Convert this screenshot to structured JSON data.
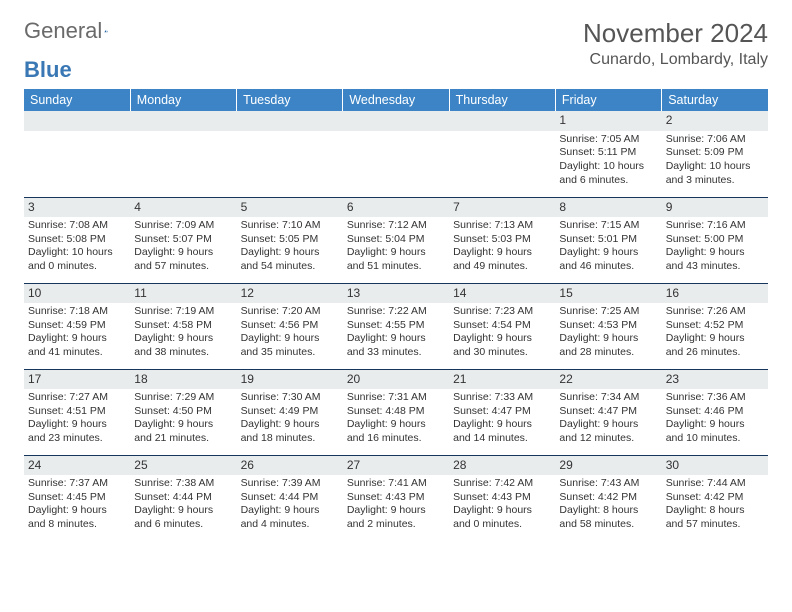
{
  "logo": {
    "text_general": "General",
    "text_blue": "Blue"
  },
  "title": "November 2024",
  "location": "Cunardo, Lombardy, Italy",
  "colors": {
    "header_bg": "#3c84c6",
    "header_text": "#ffffff",
    "daynum_bg": "#e9eced",
    "row_border": "#16365c",
    "logo_blue": "#3a78b5"
  },
  "weekdays": [
    "Sunday",
    "Monday",
    "Tuesday",
    "Wednesday",
    "Thursday",
    "Friday",
    "Saturday"
  ],
  "weeks": [
    [
      {
        "n": "",
        "sr": "",
        "ss": "",
        "dl": ""
      },
      {
        "n": "",
        "sr": "",
        "ss": "",
        "dl": ""
      },
      {
        "n": "",
        "sr": "",
        "ss": "",
        "dl": ""
      },
      {
        "n": "",
        "sr": "",
        "ss": "",
        "dl": ""
      },
      {
        "n": "",
        "sr": "",
        "ss": "",
        "dl": ""
      },
      {
        "n": "1",
        "sr": "Sunrise: 7:05 AM",
        "ss": "Sunset: 5:11 PM",
        "dl": "Daylight: 10 hours and 6 minutes."
      },
      {
        "n": "2",
        "sr": "Sunrise: 7:06 AM",
        "ss": "Sunset: 5:09 PM",
        "dl": "Daylight: 10 hours and 3 minutes."
      }
    ],
    [
      {
        "n": "3",
        "sr": "Sunrise: 7:08 AM",
        "ss": "Sunset: 5:08 PM",
        "dl": "Daylight: 10 hours and 0 minutes."
      },
      {
        "n": "4",
        "sr": "Sunrise: 7:09 AM",
        "ss": "Sunset: 5:07 PM",
        "dl": "Daylight: 9 hours and 57 minutes."
      },
      {
        "n": "5",
        "sr": "Sunrise: 7:10 AM",
        "ss": "Sunset: 5:05 PM",
        "dl": "Daylight: 9 hours and 54 minutes."
      },
      {
        "n": "6",
        "sr": "Sunrise: 7:12 AM",
        "ss": "Sunset: 5:04 PM",
        "dl": "Daylight: 9 hours and 51 minutes."
      },
      {
        "n": "7",
        "sr": "Sunrise: 7:13 AM",
        "ss": "Sunset: 5:03 PM",
        "dl": "Daylight: 9 hours and 49 minutes."
      },
      {
        "n": "8",
        "sr": "Sunrise: 7:15 AM",
        "ss": "Sunset: 5:01 PM",
        "dl": "Daylight: 9 hours and 46 minutes."
      },
      {
        "n": "9",
        "sr": "Sunrise: 7:16 AM",
        "ss": "Sunset: 5:00 PM",
        "dl": "Daylight: 9 hours and 43 minutes."
      }
    ],
    [
      {
        "n": "10",
        "sr": "Sunrise: 7:18 AM",
        "ss": "Sunset: 4:59 PM",
        "dl": "Daylight: 9 hours and 41 minutes."
      },
      {
        "n": "11",
        "sr": "Sunrise: 7:19 AM",
        "ss": "Sunset: 4:58 PM",
        "dl": "Daylight: 9 hours and 38 minutes."
      },
      {
        "n": "12",
        "sr": "Sunrise: 7:20 AM",
        "ss": "Sunset: 4:56 PM",
        "dl": "Daylight: 9 hours and 35 minutes."
      },
      {
        "n": "13",
        "sr": "Sunrise: 7:22 AM",
        "ss": "Sunset: 4:55 PM",
        "dl": "Daylight: 9 hours and 33 minutes."
      },
      {
        "n": "14",
        "sr": "Sunrise: 7:23 AM",
        "ss": "Sunset: 4:54 PM",
        "dl": "Daylight: 9 hours and 30 minutes."
      },
      {
        "n": "15",
        "sr": "Sunrise: 7:25 AM",
        "ss": "Sunset: 4:53 PM",
        "dl": "Daylight: 9 hours and 28 minutes."
      },
      {
        "n": "16",
        "sr": "Sunrise: 7:26 AM",
        "ss": "Sunset: 4:52 PM",
        "dl": "Daylight: 9 hours and 26 minutes."
      }
    ],
    [
      {
        "n": "17",
        "sr": "Sunrise: 7:27 AM",
        "ss": "Sunset: 4:51 PM",
        "dl": "Daylight: 9 hours and 23 minutes."
      },
      {
        "n": "18",
        "sr": "Sunrise: 7:29 AM",
        "ss": "Sunset: 4:50 PM",
        "dl": "Daylight: 9 hours and 21 minutes."
      },
      {
        "n": "19",
        "sr": "Sunrise: 7:30 AM",
        "ss": "Sunset: 4:49 PM",
        "dl": "Daylight: 9 hours and 18 minutes."
      },
      {
        "n": "20",
        "sr": "Sunrise: 7:31 AM",
        "ss": "Sunset: 4:48 PM",
        "dl": "Daylight: 9 hours and 16 minutes."
      },
      {
        "n": "21",
        "sr": "Sunrise: 7:33 AM",
        "ss": "Sunset: 4:47 PM",
        "dl": "Daylight: 9 hours and 14 minutes."
      },
      {
        "n": "22",
        "sr": "Sunrise: 7:34 AM",
        "ss": "Sunset: 4:47 PM",
        "dl": "Daylight: 9 hours and 12 minutes."
      },
      {
        "n": "23",
        "sr": "Sunrise: 7:36 AM",
        "ss": "Sunset: 4:46 PM",
        "dl": "Daylight: 9 hours and 10 minutes."
      }
    ],
    [
      {
        "n": "24",
        "sr": "Sunrise: 7:37 AM",
        "ss": "Sunset: 4:45 PM",
        "dl": "Daylight: 9 hours and 8 minutes."
      },
      {
        "n": "25",
        "sr": "Sunrise: 7:38 AM",
        "ss": "Sunset: 4:44 PM",
        "dl": "Daylight: 9 hours and 6 minutes."
      },
      {
        "n": "26",
        "sr": "Sunrise: 7:39 AM",
        "ss": "Sunset: 4:44 PM",
        "dl": "Daylight: 9 hours and 4 minutes."
      },
      {
        "n": "27",
        "sr": "Sunrise: 7:41 AM",
        "ss": "Sunset: 4:43 PM",
        "dl": "Daylight: 9 hours and 2 minutes."
      },
      {
        "n": "28",
        "sr": "Sunrise: 7:42 AM",
        "ss": "Sunset: 4:43 PM",
        "dl": "Daylight: 9 hours and 0 minutes."
      },
      {
        "n": "29",
        "sr": "Sunrise: 7:43 AM",
        "ss": "Sunset: 4:42 PM",
        "dl": "Daylight: 8 hours and 58 minutes."
      },
      {
        "n": "30",
        "sr": "Sunrise: 7:44 AM",
        "ss": "Sunset: 4:42 PM",
        "dl": "Daylight: 8 hours and 57 minutes."
      }
    ]
  ]
}
